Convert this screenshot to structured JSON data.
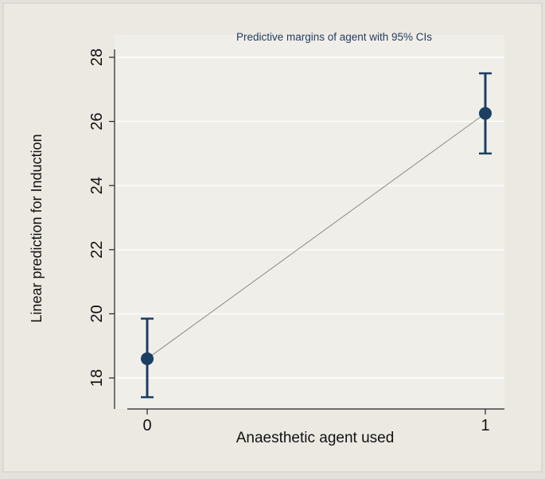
{
  "chart_data": {
    "type": "line",
    "title": "Predictive margins of agent with 95% CIs",
    "xlabel": "Anaesthetic agent used",
    "ylabel": "Linear prediction for Induction",
    "x": [
      0,
      1
    ],
    "x_tick_labels": [
      "0",
      "1"
    ],
    "y_ticks": [
      18,
      20,
      22,
      24,
      26,
      28
    ],
    "y_tick_labels": [
      "18",
      "20",
      "22",
      "24",
      "26",
      "28"
    ],
    "ylim": [
      17.4,
      28.2
    ],
    "grid": true,
    "series": [
      {
        "values": [
          18.6,
          26.25
        ],
        "ci_lower": [
          17.4,
          25.0
        ],
        "ci_upper": [
          19.85,
          27.5
        ]
      }
    ],
    "colors": {
      "marker": "#1b3f63",
      "line": "#8a8a8a",
      "grid": "#ffffff",
      "plot_bg": "#f0eee8",
      "page_bg": "#e4e1dc"
    }
  }
}
